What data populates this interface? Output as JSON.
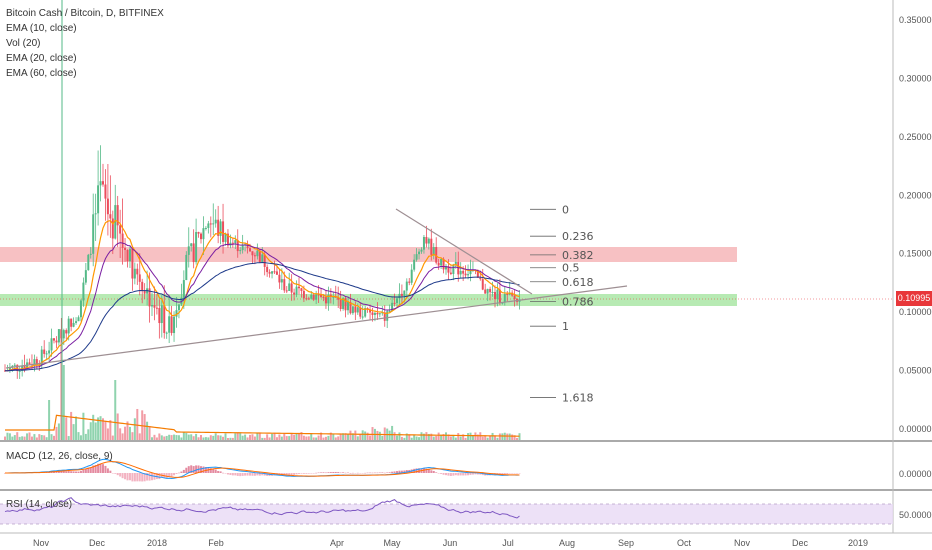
{
  "legend": {
    "symbol": "Bitcoin Cash / Bitcoin, D, BITFINEX",
    "ema10": "EMA (10, close)",
    "vol": "Vol (20)",
    "ema20": "EMA (20, close)",
    "ema60": "EMA (60, close)"
  },
  "macd_label": "MACD (12, 26, close, 9)",
  "rsi_label": "RSI (14, close)",
  "last_price": "0.10995",
  "colors": {
    "up": "#53b987",
    "down": "#eb4d5c",
    "ema10": "#ff9800",
    "ema20": "#7b1fa2",
    "ema60": "#1e3a8a",
    "resistance_zone": "#f6b6b9",
    "support_zone": "#9fe39a",
    "volume_ma": "#f57c00",
    "trendline": "#9e8f93",
    "rsi_band": "#e8d9f5"
  },
  "chart_data": [
    {
      "type": "candlestick",
      "title": "Bitcoin Cash / Bitcoin, D, BITFINEX",
      "x_tick_labels": [
        "Nov",
        "Dec",
        "2018",
        "Feb",
        "Apr",
        "May",
        "Jun",
        "Jul",
        "Aug",
        "Sep",
        "Oct",
        "Nov",
        "Dec",
        "2019"
      ],
      "y_tick_labels": [
        "0.35000",
        "0.30000",
        "0.25000",
        "0.20000",
        "0.15000",
        "0.10000",
        "0.05000",
        "0.00000"
      ],
      "ylim": [
        0,
        0.35
      ],
      "last_price": 0.10995,
      "price_ema_path": [
        [
          0,
          0.05
        ],
        [
          14,
          0.06
        ],
        [
          30,
          0.1
        ],
        [
          39,
          0.2
        ],
        [
          52,
          0.14
        ],
        [
          60,
          0.11
        ],
        [
          67,
          0.085
        ],
        [
          74,
          0.14
        ],
        [
          83,
          0.18
        ],
        [
          92,
          0.16
        ],
        [
          103,
          0.15
        ],
        [
          115,
          0.12
        ],
        [
          135,
          0.11
        ],
        [
          145,
          0.1
        ],
        [
          155,
          0.095
        ],
        [
          165,
          0.13
        ],
        [
          171,
          0.165
        ],
        [
          178,
          0.14
        ],
        [
          190,
          0.135
        ],
        [
          198,
          0.115
        ],
        [
          210,
          0.11
        ]
      ],
      "fib_levels": [
        {
          "label": "0",
          "price": 0.188
        },
        {
          "label": "0.236",
          "price": 0.165
        },
        {
          "label": "0.382",
          "price": 0.149
        },
        {
          "label": "0.5",
          "price": 0.138
        },
        {
          "label": "0.618",
          "price": 0.126
        },
        {
          "label": "0.786",
          "price": 0.109
        },
        {
          "label": "1",
          "price": 0.088
        },
        {
          "label": "1.618",
          "price": 0.027
        }
      ],
      "resistance_zone": [
        0.144,
        0.156
      ],
      "support_zone": [
        0.105,
        0.115
      ]
    },
    {
      "type": "bar",
      "title": "MACD (12, 26, close, 9)",
      "y_tick_labels": [
        "0.00000"
      ]
    },
    {
      "type": "line",
      "title": "RSI (14, close)",
      "y_tick_labels": [
        "50.0000"
      ]
    }
  ]
}
